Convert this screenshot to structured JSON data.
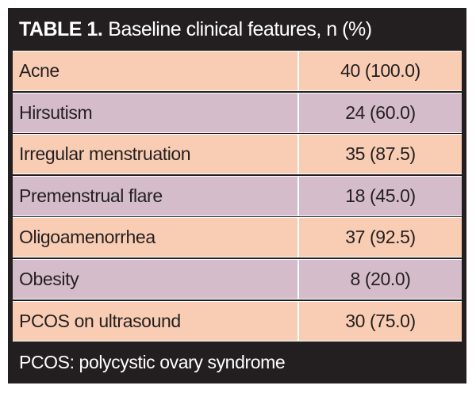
{
  "table": {
    "title_label": "TABLE 1.",
    "title_text": "Baseline clinical features, n (%)",
    "rows": [
      {
        "feature": "Acne",
        "value": "40 (100.0)"
      },
      {
        "feature": "Hirsutism",
        "value": "24 (60.0)"
      },
      {
        "feature": "Irregular menstruation",
        "value": "35 (87.5)"
      },
      {
        "feature": "Premenstrual flare",
        "value": "18 (45.0)"
      },
      {
        "feature": "Oligoamenorrhea",
        "value": "37 (92.5)"
      },
      {
        "feature": "Obesity",
        "value": "8 (20.0)"
      },
      {
        "feature": "PCOS on ultrasound",
        "value": "30 (75.0)"
      }
    ],
    "footnote": "PCOS: polycystic ovary syndrome"
  },
  "colors": {
    "frame": "#231f20",
    "row_peach": "#f9cdb4",
    "row_mauve": "#d4bccb",
    "text_dark": "#231f20",
    "text_light": "#ffffff"
  }
}
